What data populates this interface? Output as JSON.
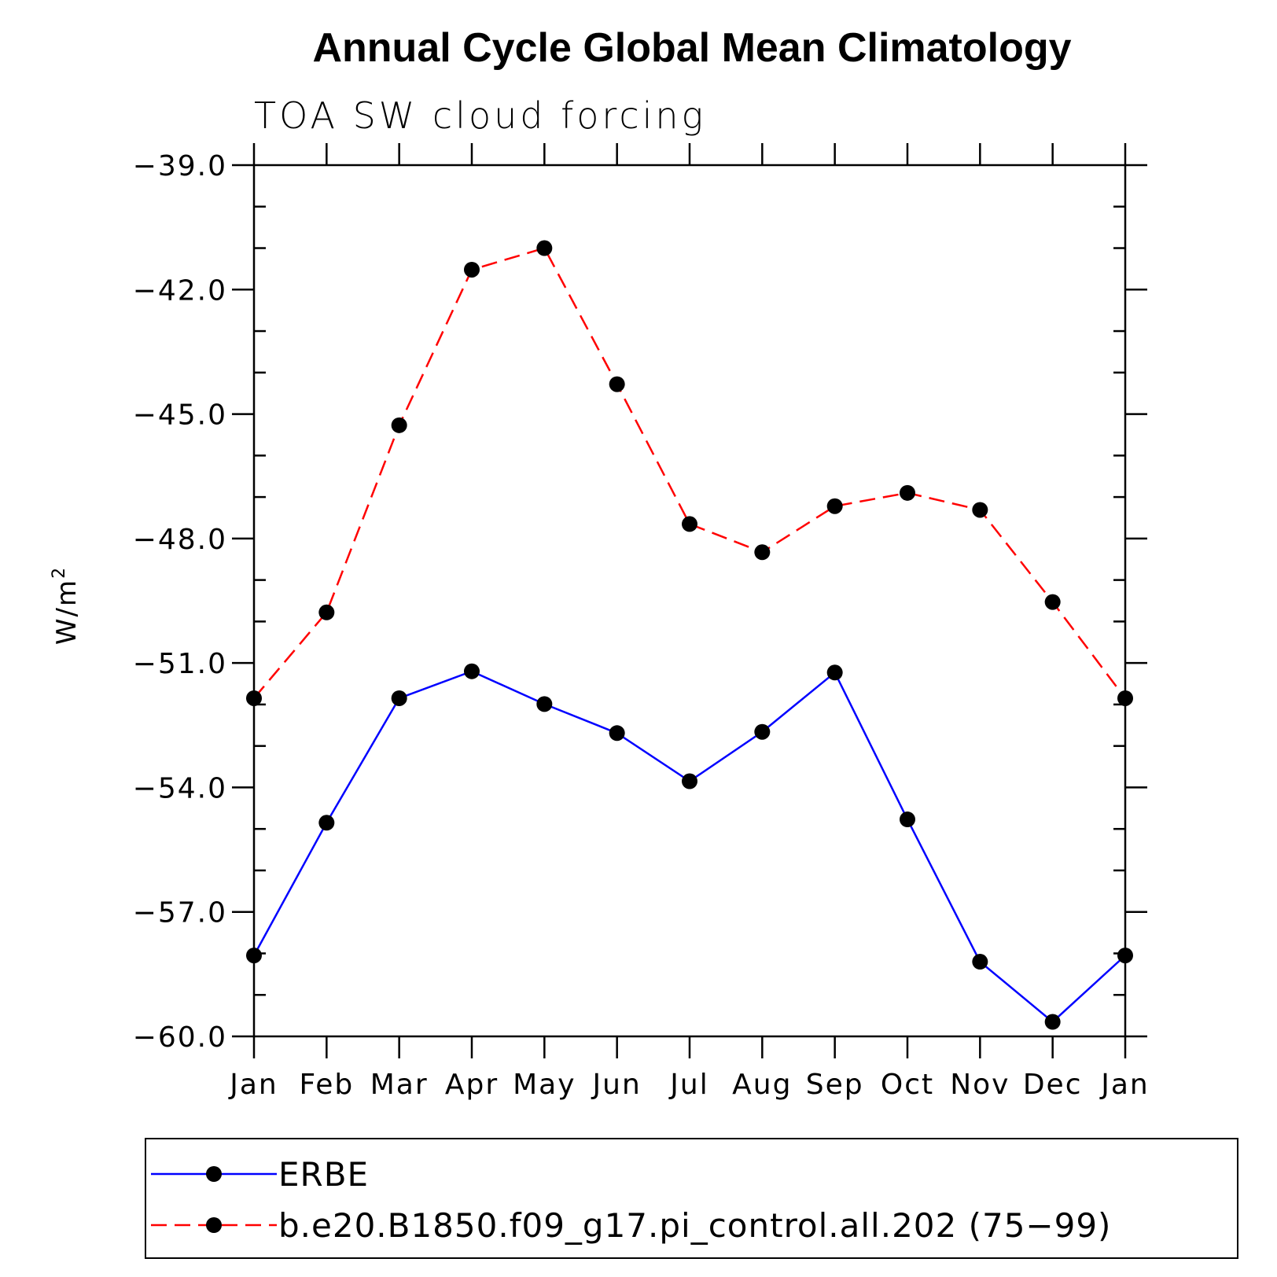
{
  "chart_data": {
    "type": "line",
    "title": "Annual Cycle Global Mean Climatology",
    "subtitle": "TOA SW cloud forcing",
    "ylabel": "W/m",
    "ylabel_sup": "2",
    "ylim": [
      -60.0,
      -39.0
    ],
    "y_ticks": [
      -39.0,
      -42.0,
      -45.0,
      -48.0,
      -51.0,
      -54.0,
      -57.0,
      -60.0
    ],
    "y_tick_labels": [
      "−39.0",
      "−42.0",
      "−45.0",
      "−48.0",
      "−51.0",
      "−54.0",
      "−57.0",
      "−60.0"
    ],
    "categories": [
      "Jan",
      "Feb",
      "Mar",
      "Apr",
      "May",
      "Jun",
      "Jul",
      "Aug",
      "Sep",
      "Oct",
      "Nov",
      "Dec",
      "Jan"
    ],
    "legend_position": "bottom",
    "series": [
      {
        "name": "ERBE",
        "color": "#0000ff",
        "style": "solid",
        "values": [
          -58.05,
          -54.85,
          -51.85,
          -51.2,
          -51.99,
          -52.69,
          -53.85,
          -52.66,
          -51.23,
          -54.77,
          -58.2,
          -59.65,
          -58.05
        ]
      },
      {
        "name": "b.e20.B1850.f09_g17.pi_control.all.202 (75−99)",
        "color": "#ff0000",
        "style": "dashed",
        "values": [
          -51.85,
          -49.78,
          -45.27,
          -41.52,
          -41.0,
          -44.28,
          -47.65,
          -48.33,
          -47.22,
          -46.9,
          -47.31,
          -49.53,
          -51.85
        ]
      }
    ]
  }
}
